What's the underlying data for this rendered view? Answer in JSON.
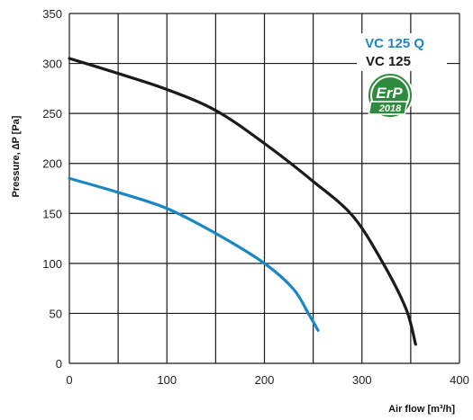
{
  "chart_data": {
    "type": "line",
    "xlabel": "Air flow [m³/h]",
    "ylabel": "Pressure, ∆P [Pa]",
    "xlim": [
      0,
      400
    ],
    "ylim": [
      0,
      350
    ],
    "x_ticks": [
      0,
      100,
      200,
      300,
      400
    ],
    "y_ticks": [
      0,
      50,
      100,
      150,
      200,
      250,
      300,
      350
    ],
    "x_grid": [
      0,
      50,
      100,
      150,
      200,
      250,
      300,
      350,
      400
    ],
    "y_grid": [
      0,
      50,
      100,
      150,
      200,
      250,
      300,
      350
    ],
    "grid": true,
    "legend_position": "top-right",
    "series": [
      {
        "name": "VC 125 Q",
        "color": "#1a87c5",
        "x": [
          0,
          50,
          100,
          150,
          200,
          230,
          245,
          255
        ],
        "y": [
          185,
          171,
          155,
          130,
          100,
          74,
          50,
          33
        ]
      },
      {
        "name": "VC 125",
        "color": "#1a1a1a",
        "x": [
          0,
          50,
          100,
          150,
          200,
          250,
          290,
          320,
          345,
          355
        ],
        "y": [
          305,
          290,
          274,
          253,
          220,
          182,
          148,
          103,
          55,
          19
        ]
      }
    ],
    "badge": {
      "line1": "ErP",
      "line2": "2018",
      "color": "#2e8b3e"
    }
  }
}
